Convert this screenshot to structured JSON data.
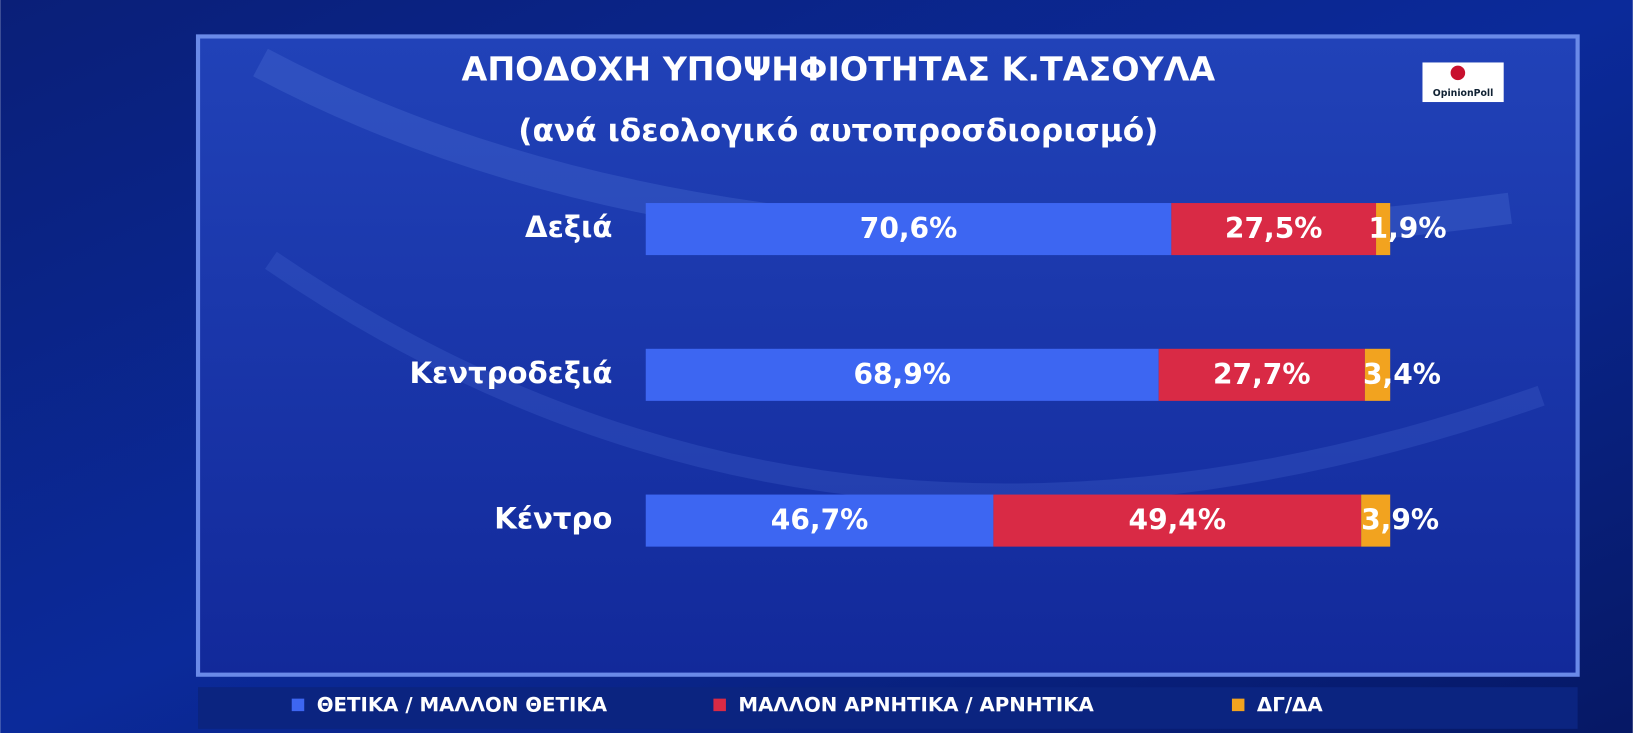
{
  "logo": "OpinionPoll",
  "chart_data": {
    "type": "bar",
    "orientation": "horizontal",
    "stacked": true,
    "title": "ΑΠΟΔΟΧΗ ΥΠΟΨΗΦΙΟΤΗΤΑΣ Κ.ΤΑΣΟΥΛΑ",
    "subtitle": "(ανά ιδεολογικό αυτοπροσδιορισμό)",
    "categories": [
      "Δεξιά",
      "Κεντροδεξιά",
      "Κέντρο"
    ],
    "series": [
      {
        "name": "ΘΕΤΙΚΑ / ΜΑΛΛΟΝ ΘΕΤΙΚΑ",
        "color": "#3d66f2",
        "values": [
          70.6,
          68.9,
          46.7
        ],
        "value_labels": [
          "70,6%",
          "68,9%",
          "46,7%"
        ]
      },
      {
        "name": "ΜΑΛΛΟΝ ΑΡΝΗΤΙΚΑ / ΑΡΝΗΤΙΚΑ",
        "color": "#d92a45",
        "values": [
          27.5,
          27.7,
          49.4
        ],
        "value_labels": [
          "27,5%",
          "27,7%",
          "49,4%"
        ]
      },
      {
        "name": "ΔΓ/ΔΑ",
        "color": "#f2a31f",
        "values": [
          1.9,
          3.4,
          3.9
        ],
        "value_labels": [
          "1,9%",
          "3,4%",
          "3,9%"
        ]
      }
    ],
    "legend": "bottom"
  }
}
